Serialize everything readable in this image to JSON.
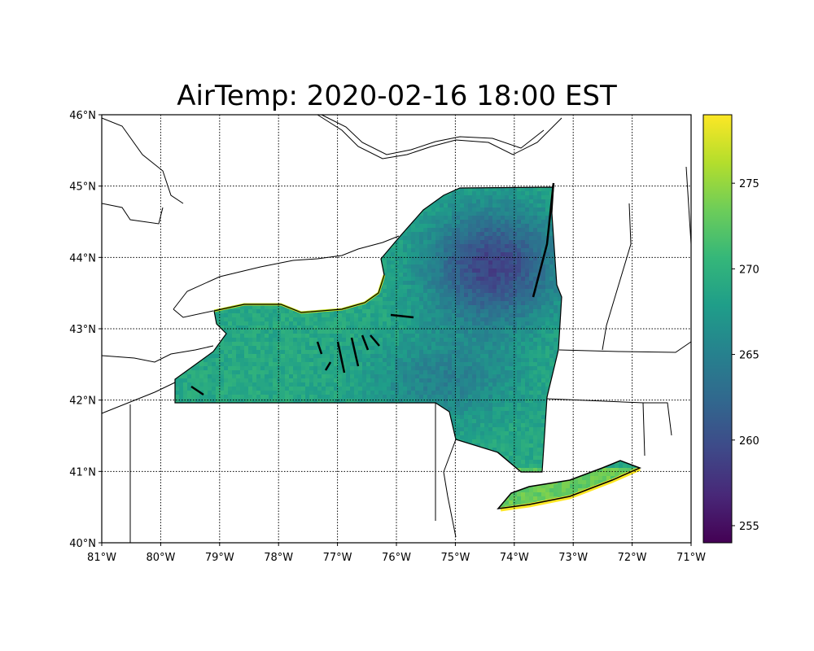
{
  "chart_data": {
    "type": "heatmap",
    "title": "AirTemp: 2020-02-16 18:00 EST",
    "xlim": [
      -81,
      -71
    ],
    "ylim": [
      40,
      46
    ],
    "x_ticks": [
      -81,
      -80,
      -79,
      -78,
      -77,
      -76,
      -75,
      -74,
      -73,
      -72,
      -71
    ],
    "x_tick_labels": [
      "81°W",
      "80°W",
      "79°W",
      "78°W",
      "77°W",
      "76°W",
      "75°W",
      "74°W",
      "73°W",
      "72°W",
      "71°W"
    ],
    "y_ticks": [
      40,
      41,
      42,
      43,
      44,
      45,
      46
    ],
    "y_tick_labels": [
      "40°N",
      "41°N",
      "42°N",
      "43°N",
      "44°N",
      "45°N",
      "46°N"
    ],
    "grid": true,
    "colormap": "viridis",
    "colorbar": {
      "range": [
        254,
        279
      ],
      "ticks": [
        255,
        260,
        265,
        270,
        275
      ],
      "tick_labels": [
        "255",
        "260",
        "265",
        "270",
        "275"
      ],
      "placement": "right"
    },
    "field_description_values": {
      "adirondacks_min": 257,
      "western_ny_typical": 269,
      "coast_max": 279
    }
  }
}
